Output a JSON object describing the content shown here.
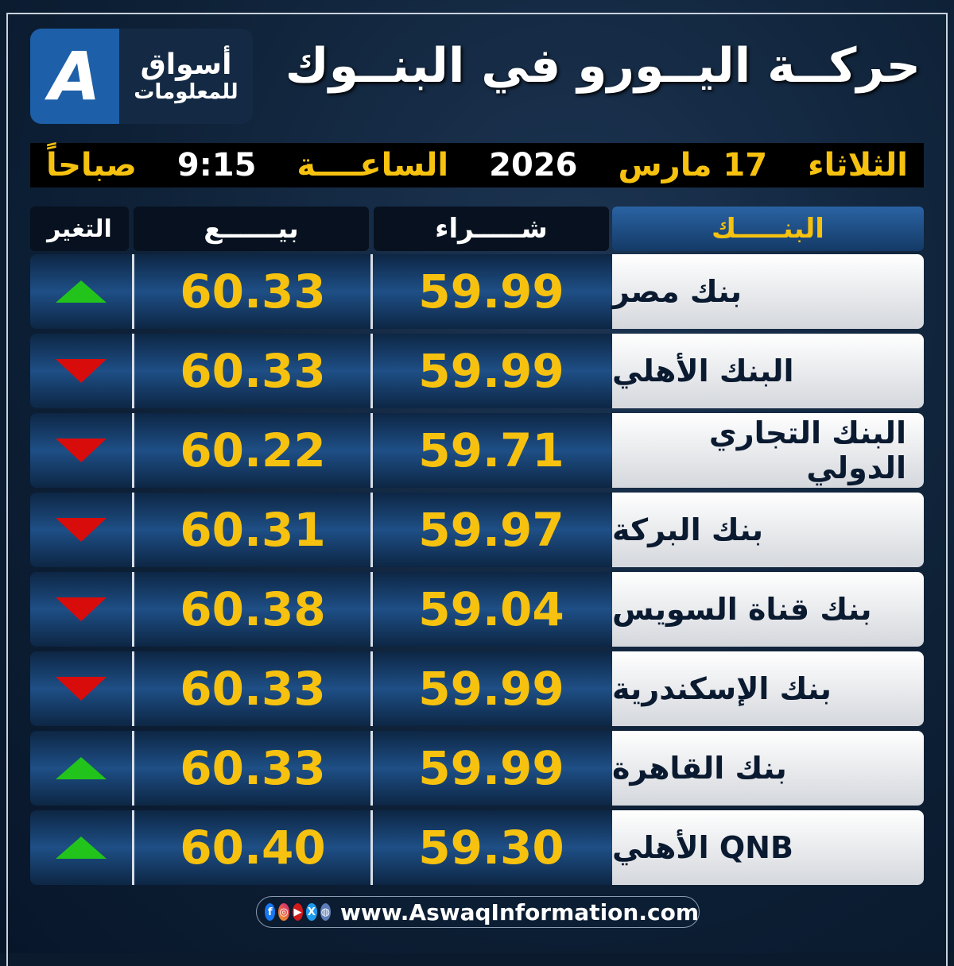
{
  "logo": {
    "mark": "A",
    "line1": "أسواق",
    "line2": "للمعلومات"
  },
  "title": "حركــة اليــورو في البنــوك",
  "date": {
    "day": "الثلاثاء",
    "date": "17 مارس",
    "year": "2026",
    "time_label": "الساعــــة",
    "time": "9:15",
    "period": "صباحاً"
  },
  "headers": {
    "bank": "البنـــــك",
    "buy": "شـــــراء",
    "sell": "بيــــــع",
    "change": "التغير"
  },
  "colors": {
    "accent": "#f6c20f",
    "up": "#22c41c",
    "down": "#d90c0c"
  },
  "rows": [
    {
      "bank": "بنك مصر",
      "buy": "59.99",
      "sell": "60.33",
      "change": "up"
    },
    {
      "bank": "البنك الأهلي",
      "buy": "59.99",
      "sell": "60.33",
      "change": "down"
    },
    {
      "bank": "البنك التجاري الدولي",
      "buy": "59.71",
      "sell": "60.22",
      "change": "down"
    },
    {
      "bank": "بنك البركة",
      "buy": "59.97",
      "sell": "60.31",
      "change": "down"
    },
    {
      "bank": "بنك قناة السويس",
      "buy": "59.04",
      "sell": "60.38",
      "change": "down"
    },
    {
      "bank": "بنك الإسكندرية",
      "buy": "59.99",
      "sell": "60.33",
      "change": "down"
    },
    {
      "bank": "بنك القاهرة",
      "buy": "59.99",
      "sell": "60.33",
      "change": "up"
    },
    {
      "bank": "QNB الأهلي",
      "buy": "59.30",
      "sell": "60.40",
      "change": "up"
    }
  ],
  "footer": {
    "url": "www.AswaqInformation.com",
    "icons": [
      "facebook-icon",
      "instagram-icon",
      "youtube-icon",
      "x-icon",
      "globe-icon"
    ]
  }
}
